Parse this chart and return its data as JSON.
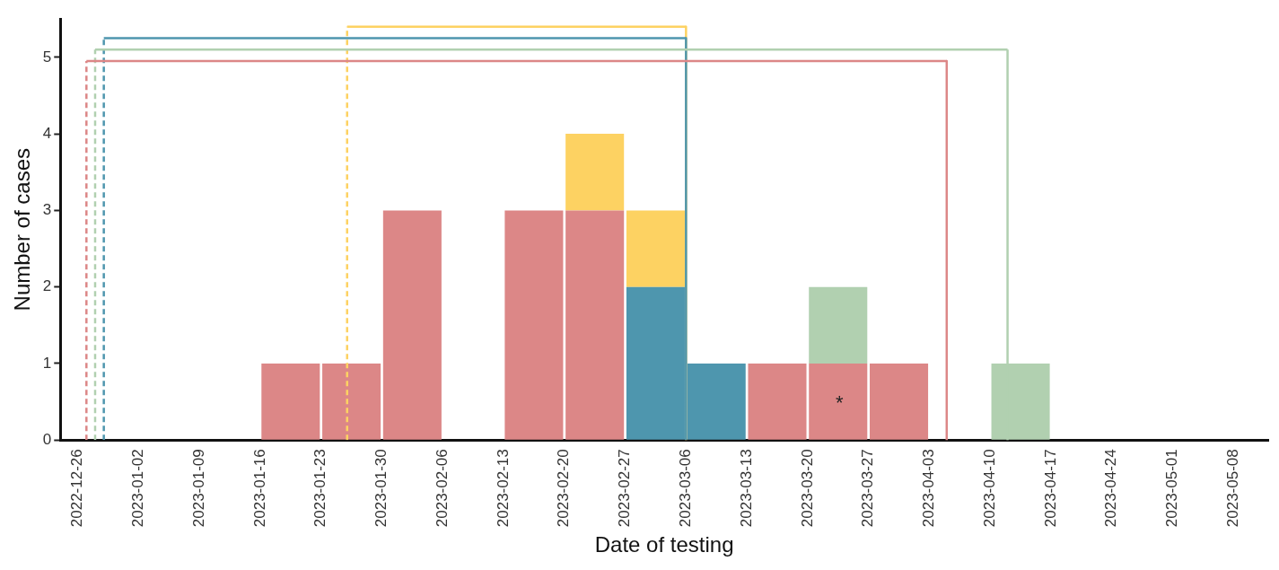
{
  "chart_data": {
    "type": "histogram",
    "xlabel": "Date of testing",
    "ylabel": "Number of cases",
    "stacked": true,
    "bins": [
      "2023-01-16",
      "2023-01-23",
      "2023-01-30",
      "2023-02-06",
      "2023-02-13",
      "2023-02-20",
      "2023-02-27",
      "2023-03-06",
      "2023-03-13",
      "2023-03-20",
      "2023-03-27",
      "2023-04-03",
      "2023-04-10",
      "2023-04-17"
    ],
    "series": [
      {
        "color": "#dc8787",
        "values": [
          1,
          1,
          3,
          0,
          3,
          3,
          0,
          0,
          1,
          1,
          1,
          0,
          0
        ]
      },
      {
        "color": "#4e96ae",
        "values": [
          0,
          0,
          0,
          0,
          0,
          0,
          2,
          1,
          0,
          0,
          0,
          0,
          0
        ]
      },
      {
        "color": "#fdd262",
        "values": [
          0,
          0,
          0,
          0,
          0,
          1,
          1,
          0,
          0,
          0,
          0,
          0,
          0
        ]
      },
      {
        "color": "#b1d0b0",
        "values": [
          0,
          0,
          0,
          0,
          0,
          0,
          0,
          0,
          0,
          1,
          0,
          0,
          1
        ]
      },
      {
        "type": "line",
        "color": "#dc8787",
        "x": [
          "2022-12-27",
          "2022-12-27",
          "2023-04-05",
          "2023-04-05"
        ],
        "values": [
          0,
          4.95,
          4.95,
          0
        ]
      },
      {
        "type": "line",
        "color": "#b1d0b0",
        "x": [
          "2022-12-28",
          "2022-12-28",
          "2023-04-12",
          "2023-04-12"
        ],
        "values": [
          0,
          5.1,
          5.1,
          0
        ]
      },
      {
        "type": "line",
        "color": "#4e96ae",
        "x": [
          "2022-12-29",
          "2022-12-29",
          "2023-03-06",
          "2023-03-06"
        ],
        "values": [
          0,
          5.25,
          5.25,
          0
        ]
      },
      {
        "type": "line",
        "color": "#fdd262",
        "x": [
          "2023-01-26",
          "2023-01-26",
          "2023-03-06",
          "2023-03-06"
        ],
        "values": [
          0,
          5.4,
          5.4,
          0
        ]
      }
    ],
    "xlim": [
      "2022-12-24",
      "2023-05-12"
    ],
    "xticks": [
      "2022-12-26",
      "2023-01-02",
      "2023-01-09",
      "2023-01-16",
      "2023-01-23",
      "2023-01-30",
      "2023-02-06",
      "2023-02-13",
      "2023-02-20",
      "2023-02-27",
      "2023-03-06",
      "2023-03-13",
      "2023-03-20",
      "2023-03-27",
      "2023-04-03",
      "2023-04-10",
      "2023-04-17",
      "2023-04-24",
      "2023-05-01",
      "2023-05-08"
    ],
    "ylim": [
      0,
      5.5
    ],
    "yticks": [
      0,
      1,
      2,
      3,
      4,
      5
    ],
    "annotations": [
      "*"
    ],
    "grid": false,
    "legend": false
  }
}
